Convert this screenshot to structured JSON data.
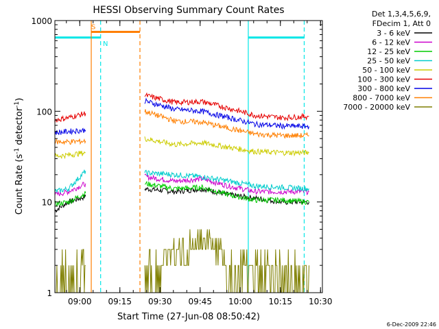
{
  "chart_data": {
    "type": "line",
    "title": "HESSI Observing Summary Count Rates",
    "xlabel": "Start Time (27-Jun-08 08:50:42)",
    "ylabel_main": "Count Rate (s",
    "ylabel_sup1": "-1",
    "ylabel_mid": " detector",
    "ylabel_sup2": "-1",
    "ylabel_end": ")",
    "footer": "6-Dec-2009 22:46",
    "x_axis_unit": "minutes since 08:50:42",
    "xlim": [
      0,
      100
    ],
    "ylim": [
      1,
      1000
    ],
    "y_scale": "log",
    "xticks": [
      {
        "v": 9.3,
        "label": "09:00"
      },
      {
        "v": 24.3,
        "label": "09:15"
      },
      {
        "v": 39.3,
        "label": "09:30"
      },
      {
        "v": 54.3,
        "label": "09:45"
      },
      {
        "v": 69.3,
        "label": "10:00"
      },
      {
        "v": 84.3,
        "label": "10:15"
      },
      {
        "v": 99.3,
        "label": "10:30"
      }
    ],
    "yticks": [
      {
        "v": 1,
        "label": "1"
      },
      {
        "v": 10,
        "label": "10"
      },
      {
        "v": 100,
        "label": "100"
      },
      {
        "v": 1000,
        "label": "1000"
      }
    ],
    "legend": {
      "placement": "right",
      "header": [
        "Det 1,3,4,5,6,9,",
        "FDecim 1, Att 0"
      ]
    },
    "series": [
      {
        "name": "3 - 6 keV",
        "color": "#000000",
        "segments": [
          [
            [
              0,
              8
            ],
            [
              5,
              10
            ],
            [
              11.5,
              11.5
            ]
          ],
          [
            [
              33.6,
              14
            ],
            [
              45,
              13
            ],
            [
              55,
              14
            ],
            [
              65,
              12
            ],
            [
              75,
              11
            ],
            [
              85,
              10
            ],
            [
              95,
              10
            ]
          ]
        ]
      },
      {
        "name": "6 - 12 keV",
        "color": "#cc00cc",
        "segments": [
          [
            [
              0,
              12
            ],
            [
              5,
              13
            ],
            [
              11.5,
              16
            ]
          ],
          [
            [
              33.6,
              19
            ],
            [
              45,
              17
            ],
            [
              55,
              18
            ],
            [
              65,
              15
            ],
            [
              75,
              13
            ],
            [
              85,
              13
            ],
            [
              95,
              13
            ]
          ]
        ]
      },
      {
        "name": "12 - 25 keV",
        "color": "#00cc00",
        "segments": [
          [
            [
              0,
              9.5
            ],
            [
              5,
              10
            ],
            [
              11.5,
              12.5
            ]
          ],
          [
            [
              33.6,
              16
            ],
            [
              45,
              14
            ],
            [
              55,
              14.5
            ],
            [
              65,
              12
            ],
            [
              75,
              10.5
            ],
            [
              85,
              10.5
            ],
            [
              95,
              10
            ]
          ]
        ]
      },
      {
        "name": "25 - 50 keV",
        "color": "#00cccc",
        "segments": [
          [
            [
              0,
              13
            ],
            [
              5,
              14
            ],
            [
              11.5,
              22
            ]
          ],
          [
            [
              33.6,
              21
            ],
            [
              45,
              20
            ],
            [
              55,
              19
            ],
            [
              65,
              17
            ],
            [
              75,
              15
            ],
            [
              85,
              14.5
            ],
            [
              95,
              14
            ]
          ]
        ]
      },
      {
        "name": "50 - 100 keV",
        "color": "#cccc00",
        "segments": [
          [
            [
              0,
              32
            ],
            [
              5,
              33
            ],
            [
              11.5,
              35
            ]
          ],
          [
            [
              33.6,
              50
            ],
            [
              45,
              43
            ],
            [
              55,
              45
            ],
            [
              65,
              40
            ],
            [
              75,
              36
            ],
            [
              85,
              35
            ],
            [
              95,
              35
            ]
          ]
        ]
      },
      {
        "name": "100 - 300 keV",
        "color": "#e60000",
        "segments": [
          [
            [
              0,
              80
            ],
            [
              5,
              85
            ],
            [
              11.5,
              95
            ]
          ],
          [
            [
              33.6,
              150
            ],
            [
              45,
              125
            ],
            [
              55,
              128
            ],
            [
              65,
              108
            ],
            [
              75,
              90
            ],
            [
              85,
              85
            ],
            [
              95,
              88
            ]
          ]
        ]
      },
      {
        "name": "300 - 800 keV",
        "color": "#0000e6",
        "segments": [
          [
            [
              0,
              58
            ],
            [
              5,
              60
            ],
            [
              11.5,
              62
            ]
          ],
          [
            [
              33.6,
              130
            ],
            [
              45,
              105
            ],
            [
              55,
              100
            ],
            [
              65,
              85
            ],
            [
              75,
              72
            ],
            [
              85,
              69
            ],
            [
              95,
              68
            ]
          ]
        ]
      },
      {
        "name": "800 - 7000 keV",
        "color": "#ff7f00",
        "segments": [
          [
            [
              0,
              46
            ],
            [
              5,
              46
            ],
            [
              11.5,
              47
            ]
          ],
          [
            [
              33.6,
              100
            ],
            [
              45,
              78
            ],
            [
              55,
              76
            ],
            [
              65,
              65
            ],
            [
              75,
              56
            ],
            [
              85,
              54
            ],
            [
              95,
              54
            ]
          ]
        ]
      },
      {
        "name": "7000 - 20000 keV",
        "color": "#7f7f00",
        "segments": [
          [
            [
              0,
              2
            ],
            [
              5,
              2
            ],
            [
              11.5,
              2
            ]
          ],
          [
            [
              33.6,
              2
            ],
            [
              45,
              3
            ],
            [
              55,
              4
            ],
            [
              60,
              3.5
            ],
            [
              65,
              2
            ],
            [
              75,
              2
            ],
            [
              85,
              2
            ],
            [
              95,
              2
            ]
          ]
        ]
      }
    ],
    "annotations": [
      {
        "type": "bar",
        "label": "S",
        "x0": 13.6,
        "x1": 31.8,
        "y": 750,
        "color": "#ff7f00"
      },
      {
        "type": "bar",
        "label": "N",
        "x0": 0,
        "x1": 17.1,
        "y": 650,
        "color": "#00e6e6"
      },
      {
        "type": "bar",
        "label": "",
        "x0": 72.3,
        "x1": 93.2,
        "y": 650,
        "color": "#00e6e6"
      },
      {
        "type": "vline",
        "x": 13.6,
        "style": "solid",
        "color": "#ff7f00"
      },
      {
        "type": "vline",
        "x": 31.8,
        "style": "dashed",
        "color": "#ff7f00"
      },
      {
        "type": "vline",
        "x": 17.1,
        "style": "dashed",
        "color": "#00e6e6"
      },
      {
        "type": "vline",
        "x": 72.3,
        "style": "solid",
        "color": "#00e6e6"
      },
      {
        "type": "vline",
        "x": 93.2,
        "style": "dashed",
        "color": "#00e6e6"
      }
    ]
  }
}
